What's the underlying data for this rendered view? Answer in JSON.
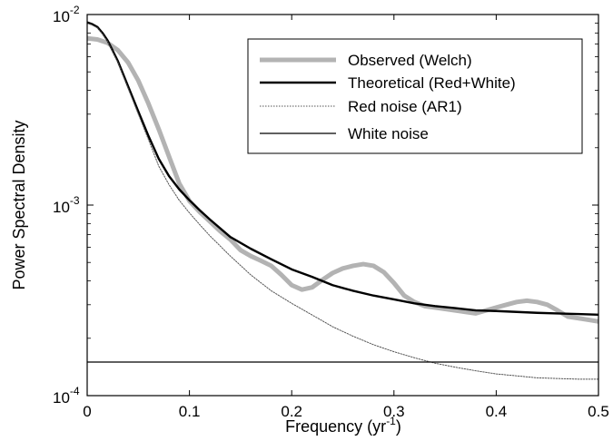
{
  "chart_data": {
    "type": "line",
    "title": "",
    "xlabel": {
      "text": "Frequency (yr",
      "sup": "-1",
      "suffix": ")"
    },
    "ylabel": "Power Spectral Density",
    "xlim": [
      0,
      0.5
    ],
    "ylim": [
      0.0001,
      0.01
    ],
    "yscale": "log",
    "grid": false,
    "legend_position": "top-right",
    "x_ticks": [
      {
        "value": 0,
        "label": "0"
      },
      {
        "value": 0.1,
        "label": "0.1"
      },
      {
        "value": 0.2,
        "label": "0.2"
      },
      {
        "value": 0.3,
        "label": "0.3"
      },
      {
        "value": 0.4,
        "label": "0.4"
      },
      {
        "value": 0.5,
        "label": "0.5"
      }
    ],
    "y_ticks": [
      {
        "value": 0.0001,
        "base": "10",
        "exp": "-4"
      },
      {
        "value": 0.001,
        "base": "10",
        "exp": "-3"
      },
      {
        "value": 0.01,
        "base": "10",
        "exp": "-2"
      }
    ],
    "series": [
      {
        "name": "Observed (Welch)",
        "color": "#b3b3b3",
        "style": "thick",
        "points": [
          [
            0.0,
            0.0075
          ],
          [
            0.01,
            0.0074
          ],
          [
            0.02,
            0.0071
          ],
          [
            0.03,
            0.0065
          ],
          [
            0.04,
            0.0056
          ],
          [
            0.05,
            0.0045
          ],
          [
            0.06,
            0.0034
          ],
          [
            0.07,
            0.0025
          ],
          [
            0.08,
            0.0018
          ],
          [
            0.09,
            0.0013
          ],
          [
            0.1,
            0.00105
          ],
          [
            0.11,
            0.00092
          ],
          [
            0.12,
            0.00082
          ],
          [
            0.13,
            0.00073
          ],
          [
            0.14,
            0.00066
          ],
          [
            0.15,
            0.00058
          ],
          [
            0.16,
            0.00054
          ],
          [
            0.17,
            0.00051
          ],
          [
            0.18,
            0.00048
          ],
          [
            0.19,
            0.00043
          ],
          [
            0.2,
            0.00038
          ],
          [
            0.21,
            0.00036
          ],
          [
            0.22,
            0.00037
          ],
          [
            0.23,
            0.000405
          ],
          [
            0.24,
            0.00044
          ],
          [
            0.25,
            0.000465
          ],
          [
            0.26,
            0.00048
          ],
          [
            0.27,
            0.00049
          ],
          [
            0.28,
            0.00048
          ],
          [
            0.29,
            0.000445
          ],
          [
            0.3,
            0.00039
          ],
          [
            0.31,
            0.000335
          ],
          [
            0.32,
            0.00031
          ],
          [
            0.33,
            0.000295
          ],
          [
            0.34,
            0.00029
          ],
          [
            0.35,
            0.000285
          ],
          [
            0.36,
            0.00028
          ],
          [
            0.37,
            0.000275
          ],
          [
            0.38,
            0.00027
          ],
          [
            0.39,
            0.00028
          ],
          [
            0.4,
            0.00029
          ],
          [
            0.41,
            0.0003
          ],
          [
            0.42,
            0.00031
          ],
          [
            0.43,
            0.000315
          ],
          [
            0.44,
            0.00031
          ],
          [
            0.45,
            0.0003
          ],
          [
            0.46,
            0.00028
          ],
          [
            0.47,
            0.00026
          ],
          [
            0.48,
            0.000255
          ],
          [
            0.49,
            0.00025
          ],
          [
            0.5,
            0.000245
          ]
        ]
      },
      {
        "name": "Theoretical (Red+White)",
        "color": "#000000",
        "style": "bold",
        "points": [
          [
            0.0,
            0.0091
          ],
          [
            0.005,
            0.0089
          ],
          [
            0.01,
            0.0086
          ],
          [
            0.015,
            0.008
          ],
          [
            0.02,
            0.0073
          ],
          [
            0.03,
            0.0057
          ],
          [
            0.04,
            0.0042
          ],
          [
            0.05,
            0.0031
          ],
          [
            0.06,
            0.0023
          ],
          [
            0.07,
            0.00175
          ],
          [
            0.08,
            0.00142
          ],
          [
            0.09,
            0.00121
          ],
          [
            0.1,
            0.00106
          ],
          [
            0.11,
            0.00094
          ],
          [
            0.12,
            0.00084
          ],
          [
            0.14,
            0.00068
          ],
          [
            0.16,
            0.00059
          ],
          [
            0.18,
            0.00052
          ],
          [
            0.2,
            0.00046
          ],
          [
            0.22,
            0.00042
          ],
          [
            0.24,
            0.00038
          ],
          [
            0.26,
            0.000355
          ],
          [
            0.28,
            0.000335
          ],
          [
            0.3,
            0.00032
          ],
          [
            0.32,
            0.000305
          ],
          [
            0.34,
            0.000295
          ],
          [
            0.36,
            0.000288
          ],
          [
            0.38,
            0.00028
          ],
          [
            0.4,
            0.000278
          ],
          [
            0.42,
            0.000275
          ],
          [
            0.44,
            0.000272
          ],
          [
            0.46,
            0.00027
          ],
          [
            0.48,
            0.000268
          ],
          [
            0.5,
            0.000266
          ]
        ]
      },
      {
        "name": "Red noise (AR1)",
        "color": "#555555",
        "style": "dotted",
        "points": [
          [
            0.0,
            0.009
          ],
          [
            0.005,
            0.0088
          ],
          [
            0.01,
            0.0085
          ],
          [
            0.015,
            0.0079
          ],
          [
            0.02,
            0.0072
          ],
          [
            0.03,
            0.0056
          ],
          [
            0.04,
            0.0041
          ],
          [
            0.05,
            0.003
          ],
          [
            0.06,
            0.0022
          ],
          [
            0.07,
            0.0016
          ],
          [
            0.08,
            0.00128
          ],
          [
            0.09,
            0.00106
          ],
          [
            0.1,
            0.00091
          ],
          [
            0.11,
            0.00079
          ],
          [
            0.12,
            0.00069
          ],
          [
            0.14,
            0.00054
          ],
          [
            0.16,
            0.00043
          ],
          [
            0.18,
            0.000355
          ],
          [
            0.2,
            0.000305
          ],
          [
            0.22,
            0.000265
          ],
          [
            0.24,
            0.00023
          ],
          [
            0.26,
            0.000205
          ],
          [
            0.28,
            0.000185
          ],
          [
            0.3,
            0.00017
          ],
          [
            0.32,
            0.000158
          ],
          [
            0.34,
            0.000148
          ],
          [
            0.36,
            0.000141
          ],
          [
            0.38,
            0.000135
          ],
          [
            0.4,
            0.00013
          ],
          [
            0.42,
            0.000127
          ],
          [
            0.44,
            0.000124
          ],
          [
            0.46,
            0.000123
          ],
          [
            0.48,
            0.000122
          ],
          [
            0.5,
            0.000122
          ]
        ]
      },
      {
        "name": "White noise",
        "color": "#000000",
        "style": "thin",
        "points": [
          [
            0.0,
            0.00015
          ],
          [
            0.5,
            0.00015
          ]
        ]
      }
    ]
  }
}
